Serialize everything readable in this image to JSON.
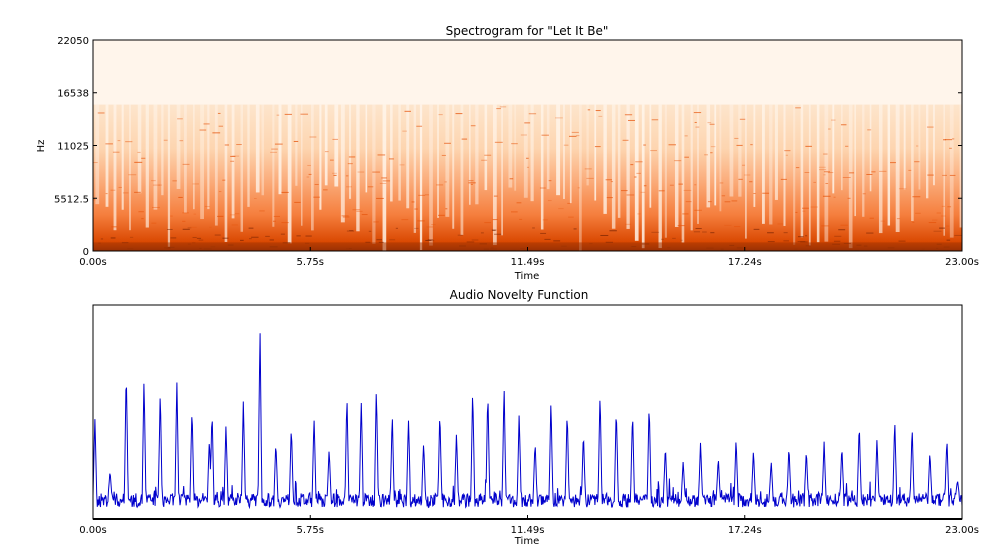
{
  "chart_data": [
    {
      "type": "heatmap",
      "title": "Spectrogram for \"Let It Be\"",
      "xlabel": "Time",
      "ylabel": "Hz",
      "xlim": [
        0,
        23.0
      ],
      "ylim": [
        0,
        22050
      ],
      "x_ticks": [
        "0.00s",
        "5.75s",
        "11.49s",
        "17.24s",
        "23.00s"
      ],
      "y_ticks": [
        "0",
        "5512.5",
        "11025",
        "16538",
        "22050"
      ],
      "energy_cutoff_hz": 15300,
      "colormap": [
        "#fff5eb",
        "#fdd0a2",
        "#fd8d3c",
        "#d94801",
        "#7f2704"
      ],
      "grid": false
    },
    {
      "type": "line",
      "title": "Audio Novelty Function",
      "xlabel": "Time",
      "ylabel": "",
      "xlim": [
        0,
        23.0
      ],
      "x_ticks": [
        "0.00s",
        "5.75s",
        "11.49s",
        "17.24s",
        "23.00s"
      ],
      "color": "#0000cc",
      "grid": false,
      "baseline": 0.12,
      "peaks": [
        {
          "t": 0.05,
          "v": 0.52
        },
        {
          "t": 0.45,
          "v": 0.25
        },
        {
          "t": 0.88,
          "v": 0.78
        },
        {
          "t": 1.35,
          "v": 0.72
        },
        {
          "t": 1.78,
          "v": 0.67
        },
        {
          "t": 2.22,
          "v": 0.71
        },
        {
          "t": 2.62,
          "v": 0.58
        },
        {
          "t": 3.08,
          "v": 0.42
        },
        {
          "t": 3.15,
          "v": 0.56
        },
        {
          "t": 3.52,
          "v": 0.49
        },
        {
          "t": 3.98,
          "v": 0.62
        },
        {
          "t": 4.42,
          "v": 1.0
        },
        {
          "t": 4.84,
          "v": 0.4
        },
        {
          "t": 5.25,
          "v": 0.48
        },
        {
          "t": 5.85,
          "v": 0.53
        },
        {
          "t": 6.25,
          "v": 0.36
        },
        {
          "t": 6.72,
          "v": 0.64
        },
        {
          "t": 7.1,
          "v": 0.62
        },
        {
          "t": 7.5,
          "v": 0.68
        },
        {
          "t": 7.92,
          "v": 0.55
        },
        {
          "t": 8.35,
          "v": 0.52
        },
        {
          "t": 8.75,
          "v": 0.4
        },
        {
          "t": 9.18,
          "v": 0.56
        },
        {
          "t": 9.62,
          "v": 0.45
        },
        {
          "t": 10.05,
          "v": 0.68
        },
        {
          "t": 10.45,
          "v": 0.66
        },
        {
          "t": 10.88,
          "v": 0.7
        },
        {
          "t": 11.28,
          "v": 0.55
        },
        {
          "t": 11.7,
          "v": 0.4
        },
        {
          "t": 12.12,
          "v": 0.62
        },
        {
          "t": 12.55,
          "v": 0.56
        },
        {
          "t": 12.98,
          "v": 0.45
        },
        {
          "t": 13.42,
          "v": 0.66
        },
        {
          "t": 13.85,
          "v": 0.58
        },
        {
          "t": 14.28,
          "v": 0.56
        },
        {
          "t": 14.72,
          "v": 0.6
        },
        {
          "t": 15.15,
          "v": 0.38
        },
        {
          "t": 15.62,
          "v": 0.3
        },
        {
          "t": 16.08,
          "v": 0.4
        },
        {
          "t": 16.55,
          "v": 0.32
        },
        {
          "t": 17.02,
          "v": 0.42
        },
        {
          "t": 17.48,
          "v": 0.36
        },
        {
          "t": 17.95,
          "v": 0.3
        },
        {
          "t": 18.42,
          "v": 0.38
        },
        {
          "t": 18.88,
          "v": 0.36
        },
        {
          "t": 19.35,
          "v": 0.4
        },
        {
          "t": 19.82,
          "v": 0.38
        },
        {
          "t": 20.28,
          "v": 0.5
        },
        {
          "t": 20.75,
          "v": 0.42
        },
        {
          "t": 21.22,
          "v": 0.52
        },
        {
          "t": 21.68,
          "v": 0.48
        },
        {
          "t": 22.15,
          "v": 0.35
        },
        {
          "t": 22.6,
          "v": 0.42
        },
        {
          "t": 22.88,
          "v": 0.2
        }
      ]
    }
  ]
}
